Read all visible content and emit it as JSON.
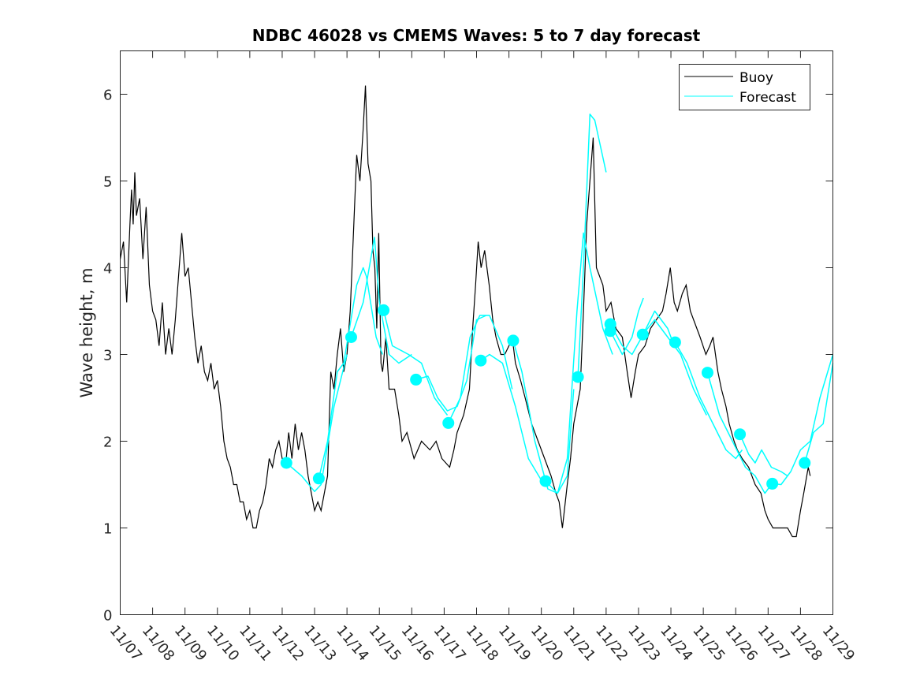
{
  "chart_data": {
    "type": "line",
    "title": "NDBC 46028 vs CMEMS Waves: 5 to 7 day forecast",
    "xlabel": "",
    "ylabel": "Wave height, m",
    "xlim_days": [
      0,
      22
    ],
    "ylim": [
      0,
      6.5
    ],
    "yticks": [
      0,
      1,
      2,
      3,
      4,
      5,
      6
    ],
    "xtick_labels": [
      "11/07",
      "11/08",
      "11/09",
      "11/10",
      "11/11",
      "11/12",
      "11/13",
      "11/14",
      "11/15",
      "11/16",
      "11/17",
      "11/18",
      "11/19",
      "11/20",
      "11/21",
      "11/22",
      "11/23",
      "11/24",
      "11/25",
      "11/26",
      "11/27",
      "11/28",
      "11/29"
    ],
    "legend": {
      "placement": "top-right",
      "entries": [
        "Buoy",
        "Forecast"
      ]
    },
    "colors": {
      "buoy": "#000000",
      "forecast": "#00ffff"
    },
    "x_units": "days since 11/07",
    "buoy": [
      [
        0,
        4.1
      ],
      [
        0.1,
        4.3
      ],
      [
        0.2,
        3.6
      ],
      [
        0.3,
        4.5
      ],
      [
        0.35,
        4.9
      ],
      [
        0.4,
        4.5
      ],
      [
        0.45,
        5.1
      ],
      [
        0.5,
        4.6
      ],
      [
        0.6,
        4.8
      ],
      [
        0.7,
        4.1
      ],
      [
        0.8,
        4.7
      ],
      [
        0.9,
        3.8
      ],
      [
        1.0,
        3.5
      ],
      [
        1.1,
        3.4
      ],
      [
        1.2,
        3.1
      ],
      [
        1.3,
        3.6
      ],
      [
        1.4,
        3.0
      ],
      [
        1.5,
        3.3
      ],
      [
        1.6,
        3.0
      ],
      [
        1.7,
        3.4
      ],
      [
        1.8,
        3.9
      ],
      [
        1.9,
        4.4
      ],
      [
        2.0,
        3.9
      ],
      [
        2.1,
        4.0
      ],
      [
        2.2,
        3.6
      ],
      [
        2.3,
        3.2
      ],
      [
        2.4,
        2.9
      ],
      [
        2.5,
        3.1
      ],
      [
        2.6,
        2.8
      ],
      [
        2.7,
        2.7
      ],
      [
        2.8,
        2.9
      ],
      [
        2.9,
        2.6
      ],
      [
        3.0,
        2.7
      ],
      [
        3.1,
        2.4
      ],
      [
        3.2,
        2.0
      ],
      [
        3.3,
        1.8
      ],
      [
        3.4,
        1.7
      ],
      [
        3.5,
        1.5
      ],
      [
        3.6,
        1.5
      ],
      [
        3.7,
        1.3
      ],
      [
        3.8,
        1.3
      ],
      [
        3.9,
        1.1
      ],
      [
        4.0,
        1.2
      ],
      [
        4.1,
        1.0
      ],
      [
        4.2,
        1.0
      ],
      [
        4.3,
        1.2
      ],
      [
        4.4,
        1.3
      ],
      [
        4.5,
        1.5
      ],
      [
        4.6,
        1.8
      ],
      [
        4.7,
        1.7
      ],
      [
        4.8,
        1.9
      ],
      [
        4.9,
        2.0
      ],
      [
        5.0,
        1.8
      ],
      [
        5.1,
        1.7
      ],
      [
        5.2,
        2.1
      ],
      [
        5.3,
        1.8
      ],
      [
        5.4,
        2.2
      ],
      [
        5.5,
        1.9
      ],
      [
        5.6,
        2.1
      ],
      [
        5.7,
        1.9
      ],
      [
        5.8,
        1.6
      ],
      [
        5.9,
        1.4
      ],
      [
        6.0,
        1.2
      ],
      [
        6.1,
        1.3
      ],
      [
        6.2,
        1.2
      ],
      [
        6.3,
        1.4
      ],
      [
        6.4,
        1.6
      ],
      [
        6.5,
        2.8
      ],
      [
        6.6,
        2.6
      ],
      [
        6.7,
        3.0
      ],
      [
        6.8,
        3.3
      ],
      [
        6.9,
        2.8
      ],
      [
        7.0,
        3.0
      ],
      [
        7.1,
        3.5
      ],
      [
        7.2,
        4.4
      ],
      [
        7.3,
        5.3
      ],
      [
        7.4,
        5.0
      ],
      [
        7.5,
        5.6
      ],
      [
        7.57,
        6.1
      ],
      [
        7.65,
        5.2
      ],
      [
        7.74,
        5.0
      ],
      [
        7.8,
        4.2
      ],
      [
        7.86,
        4.0
      ],
      [
        7.92,
        3.3
      ],
      [
        7.98,
        4.4
      ],
      [
        8.05,
        2.9
      ],
      [
        8.1,
        2.8
      ],
      [
        8.2,
        3.2
      ],
      [
        8.3,
        2.6
      ],
      [
        8.47,
        2.6
      ],
      [
        8.6,
        2.3
      ],
      [
        8.7,
        2.0
      ],
      [
        8.85,
        2.1
      ],
      [
        9.07,
        1.8
      ],
      [
        9.3,
        2.0
      ],
      [
        9.56,
        1.9
      ],
      [
        9.75,
        2.0
      ],
      [
        9.93,
        1.8
      ],
      [
        10.17,
        1.7
      ],
      [
        10.3,
        1.9
      ],
      [
        10.4,
        2.1
      ],
      [
        10.6,
        2.3
      ],
      [
        10.78,
        2.6
      ],
      [
        10.88,
        3.3
      ],
      [
        10.97,
        3.8
      ],
      [
        11.05,
        4.3
      ],
      [
        11.14,
        4.0
      ],
      [
        11.25,
        4.2
      ],
      [
        11.39,
        3.8
      ],
      [
        11.5,
        3.4
      ],
      [
        11.6,
        3.2
      ],
      [
        11.75,
        3.0
      ],
      [
        11.87,
        3.0
      ],
      [
        12.0,
        3.1
      ],
      [
        12.1,
        3.2
      ],
      [
        12.2,
        2.9
      ],
      [
        12.36,
        2.7
      ],
      [
        12.5,
        2.5
      ],
      [
        12.7,
        2.2
      ],
      [
        12.9,
        2.0
      ],
      [
        13.1,
        1.8
      ],
      [
        13.3,
        1.6
      ],
      [
        13.45,
        1.4
      ],
      [
        13.55,
        1.3
      ],
      [
        13.65,
        1.0
      ],
      [
        13.8,
        1.5
      ],
      [
        13.9,
        1.8
      ],
      [
        14.0,
        2.2
      ],
      [
        14.1,
        2.4
      ],
      [
        14.2,
        2.6
      ],
      [
        14.3,
        3.5
      ],
      [
        14.4,
        4.5
      ],
      [
        14.5,
        5.0
      ],
      [
        14.6,
        5.5
      ],
      [
        14.7,
        4.0
      ],
      [
        14.8,
        3.9
      ],
      [
        14.9,
        3.8
      ],
      [
        15.0,
        3.5
      ],
      [
        15.15,
        3.6
      ],
      [
        15.3,
        3.3
      ],
      [
        15.5,
        3.2
      ],
      [
        15.65,
        2.8
      ],
      [
        15.77,
        2.5
      ],
      [
        15.9,
        2.8
      ],
      [
        16.0,
        3.0
      ],
      [
        16.2,
        3.1
      ],
      [
        16.37,
        3.3
      ],
      [
        16.55,
        3.4
      ],
      [
        16.74,
        3.5
      ],
      [
        16.85,
        3.7
      ],
      [
        16.98,
        4.0
      ],
      [
        17.1,
        3.6
      ],
      [
        17.2,
        3.5
      ],
      [
        17.35,
        3.7
      ],
      [
        17.47,
        3.8
      ],
      [
        17.6,
        3.5
      ],
      [
        17.7,
        3.4
      ],
      [
        17.9,
        3.2
      ],
      [
        18.08,
        3.0
      ],
      [
        18.2,
        3.1
      ],
      [
        18.3,
        3.2
      ],
      [
        18.45,
        2.8
      ],
      [
        18.56,
        2.6
      ],
      [
        18.7,
        2.4
      ],
      [
        18.8,
        2.2
      ],
      [
        18.95,
        2.0
      ],
      [
        19.05,
        1.9
      ],
      [
        19.2,
        1.8
      ],
      [
        19.4,
        1.7
      ],
      [
        19.6,
        1.5
      ],
      [
        19.78,
        1.4
      ],
      [
        19.9,
        1.2
      ],
      [
        20.0,
        1.1
      ],
      [
        20.15,
        1.0
      ],
      [
        20.27,
        1.0
      ],
      [
        20.45,
        1.0
      ],
      [
        20.6,
        1.0
      ],
      [
        20.75,
        0.9
      ],
      [
        20.87,
        0.9
      ],
      [
        21.0,
        1.2
      ],
      [
        21.1,
        1.4
      ],
      [
        21.24,
        1.7
      ],
      [
        21.3,
        1.6
      ]
    ],
    "forecast_segments": [
      [
        [
          5.13,
          1.75
        ],
        [
          5.6,
          1.6
        ],
        [
          6.0,
          1.42
        ],
        [
          6.2,
          1.5
        ],
        [
          6.6,
          2.4
        ],
        [
          7.0,
          3.0
        ]
      ],
      [
        [
          6.13,
          1.57
        ],
        [
          6.4,
          2.0
        ],
        [
          6.7,
          2.8
        ],
        [
          6.9,
          2.9
        ],
        [
          7.3,
          3.8
        ],
        [
          7.5,
          4.0
        ],
        [
          7.6,
          3.9
        ],
        [
          7.9,
          3.2
        ],
        [
          8.1,
          3.0
        ]
      ],
      [
        [
          7.13,
          3.2
        ],
        [
          7.5,
          3.6
        ],
        [
          7.85,
          4.35
        ],
        [
          8.0,
          3.6
        ],
        [
          8.3,
          3.0
        ],
        [
          8.6,
          2.9
        ],
        [
          9.0,
          3.0
        ]
      ],
      [
        [
          8.13,
          3.51
        ],
        [
          8.4,
          3.1
        ],
        [
          8.9,
          3.0
        ],
        [
          9.3,
          2.9
        ],
        [
          9.7,
          2.5
        ],
        [
          10.1,
          2.3
        ]
      ],
      [
        [
          9.13,
          2.71
        ],
        [
          9.5,
          2.75
        ],
        [
          9.8,
          2.5
        ],
        [
          10.1,
          2.35
        ],
        [
          10.4,
          2.4
        ],
        [
          10.7,
          2.7
        ],
        [
          11.0,
          3.4
        ],
        [
          11.3,
          3.45
        ]
      ],
      [
        [
          10.13,
          2.21
        ],
        [
          10.5,
          2.5
        ],
        [
          10.8,
          3.2
        ],
        [
          11.1,
          3.45
        ],
        [
          11.4,
          3.45
        ],
        [
          11.8,
          3.1
        ],
        [
          12.1,
          2.6
        ]
      ],
      [
        [
          11.13,
          2.93
        ],
        [
          11.4,
          3.0
        ],
        [
          11.8,
          2.9
        ],
        [
          12.2,
          2.4
        ],
        [
          12.6,
          1.8
        ],
        [
          13.0,
          1.55
        ],
        [
          13.13,
          1.5
        ]
      ],
      [
        [
          12.13,
          3.16
        ],
        [
          12.4,
          2.8
        ],
        [
          12.8,
          2.0
        ],
        [
          13.2,
          1.45
        ],
        [
          13.5,
          1.4
        ],
        [
          13.8,
          1.6
        ],
        [
          14.0,
          2.6
        ]
      ],
      [
        [
          13.13,
          1.54
        ],
        [
          13.5,
          1.4
        ],
        [
          13.8,
          1.8
        ],
        [
          14.1,
          3.5
        ],
        [
          14.3,
          4.4
        ],
        [
          14.5,
          4.0
        ],
        [
          14.9,
          3.3
        ],
        [
          15.2,
          3.0
        ]
      ],
      [
        [
          14.13,
          2.74
        ],
        [
          14.3,
          4.0
        ],
        [
          14.5,
          5.77
        ],
        [
          14.65,
          5.7
        ],
        [
          15.0,
          5.1
        ]
      ],
      [
        [
          15.13,
          3.35
        ],
        [
          15.5,
          3.1
        ],
        [
          15.8,
          3.0
        ],
        [
          16.1,
          3.2
        ],
        [
          16.5,
          3.5
        ],
        [
          16.9,
          3.3
        ],
        [
          17.1,
          3.1
        ]
      ],
      [
        [
          15.13,
          3.27
        ],
        [
          15.5,
          3.0
        ],
        [
          15.8,
          3.2
        ],
        [
          16.0,
          3.5
        ],
        [
          16.15,
          3.65
        ]
      ],
      [
        [
          16.13,
          3.23
        ],
        [
          16.5,
          3.4
        ],
        [
          16.9,
          3.2
        ],
        [
          17.3,
          3.0
        ],
        [
          17.7,
          2.6
        ],
        [
          18.1,
          2.3
        ]
      ],
      [
        [
          17.13,
          3.14
        ],
        [
          17.5,
          2.9
        ],
        [
          17.9,
          2.5
        ],
        [
          18.3,
          2.2
        ],
        [
          18.7,
          1.9
        ],
        [
          19.0,
          1.8
        ],
        [
          19.2,
          1.9
        ]
      ],
      [
        [
          18.13,
          2.79
        ],
        [
          18.5,
          2.3
        ],
        [
          18.9,
          2.0
        ],
        [
          19.3,
          1.7
        ],
        [
          19.6,
          1.6
        ],
        [
          19.9,
          1.4
        ],
        [
          20.1,
          1.5
        ]
      ],
      [
        [
          19.13,
          2.08
        ],
        [
          19.4,
          1.85
        ],
        [
          19.6,
          1.75
        ],
        [
          19.8,
          1.9
        ],
        [
          20.1,
          1.7
        ],
        [
          20.4,
          1.65
        ],
        [
          20.6,
          1.6
        ]
      ],
      [
        [
          20.13,
          1.51
        ],
        [
          20.4,
          1.5
        ],
        [
          20.7,
          1.65
        ],
        [
          21.0,
          1.9
        ],
        [
          21.3,
          2.0
        ],
        [
          21.6,
          2.5
        ],
        [
          22.0,
          3.0
        ]
      ],
      [
        [
          21.13,
          1.75
        ],
        [
          21.4,
          2.1
        ],
        [
          21.7,
          2.2
        ],
        [
          22.0,
          2.9
        ]
      ]
    ],
    "forecast_markers": [
      [
        5.13,
        1.75
      ],
      [
        6.13,
        1.57
      ],
      [
        7.13,
        3.2
      ],
      [
        8.13,
        3.51
      ],
      [
        9.13,
        2.71
      ],
      [
        10.13,
        2.21
      ],
      [
        11.13,
        2.93
      ],
      [
        12.13,
        3.16
      ],
      [
        13.13,
        1.54
      ],
      [
        14.13,
        2.74
      ],
      [
        15.13,
        3.35
      ],
      [
        15.13,
        3.27
      ],
      [
        16.13,
        3.23
      ],
      [
        17.13,
        3.14
      ],
      [
        18.13,
        2.79
      ],
      [
        19.13,
        2.08
      ],
      [
        20.13,
        1.51
      ],
      [
        21.13,
        1.75
      ]
    ]
  }
}
